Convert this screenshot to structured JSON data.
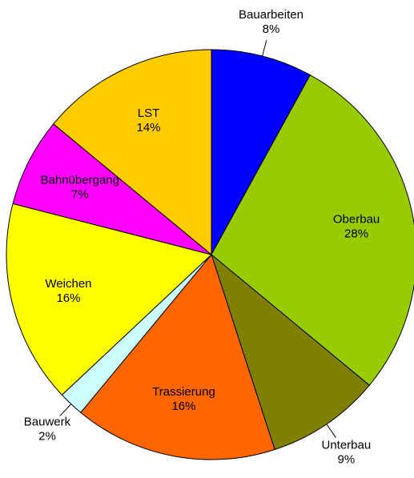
{
  "chart_data": {
    "type": "pie",
    "categories": [
      "Bauarbeiten",
      "Oberbau",
      "Unterbau",
      "Trassierung",
      "Bauwerk",
      "Weichen",
      "Bahnübergang",
      "LST"
    ],
    "values": [
      8,
      28,
      9,
      16,
      2,
      16,
      7,
      14
    ],
    "value_labels": [
      "8%",
      "28%",
      "9%",
      "16%",
      "2%",
      "16%",
      "7%",
      "14%"
    ],
    "colors": [
      "#0000ff",
      "#99cc00",
      "#808000",
      "#ff6600",
      "#ccffff",
      "#ffff00",
      "#ff00ff",
      "#ffcc00"
    ],
    "outside_labels": [
      "Bauarbeiten",
      "Unterbau",
      "Bauwerk"
    ]
  }
}
